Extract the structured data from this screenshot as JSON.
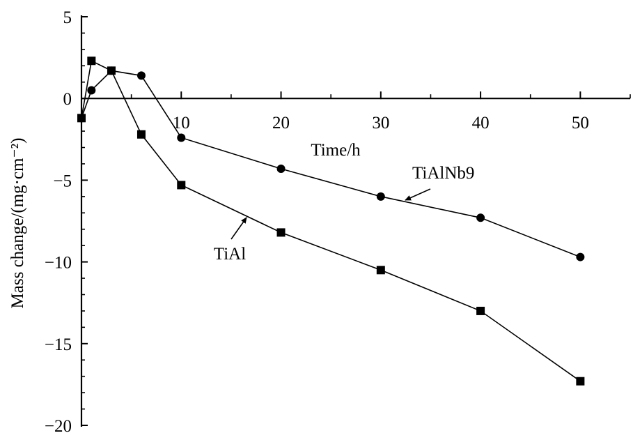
{
  "chart_data": {
    "type": "line",
    "title": "",
    "xlabel": "Time/h",
    "ylabel": "Mass change/(mg·cm⁻²)",
    "xlim": [
      0,
      55
    ],
    "ylim": [
      -20,
      5
    ],
    "x_ticks": [
      10,
      20,
      30,
      40,
      50
    ],
    "y_ticks": [
      5,
      0,
      -5,
      -10,
      -15,
      -20
    ],
    "x_tick_labels": [
      "10",
      "20",
      "30",
      "40",
      "50"
    ],
    "y_tick_labels": [
      "5",
      "0",
      "−5",
      "−10",
      "−15",
      "−20"
    ],
    "grid": false,
    "legend": "none",
    "series": [
      {
        "name": "TiAlNb9",
        "marker": "circle",
        "color": "#000000",
        "x": [
          0,
          1,
          3,
          6,
          10,
          20,
          30,
          40,
          50
        ],
        "values": [
          -1.2,
          0.5,
          1.7,
          1.4,
          -2.4,
          -4.3,
          -6.0,
          -7.3,
          -9.7
        ]
      },
      {
        "name": "TiAl",
        "marker": "square",
        "color": "#000000",
        "x": [
          0,
          1,
          3,
          6,
          10,
          20,
          30,
          40,
          50
        ],
        "values": [
          -1.2,
          2.3,
          1.7,
          -2.2,
          -5.3,
          -8.2,
          -10.5,
          -13.0,
          -17.3
        ]
      }
    ]
  }
}
